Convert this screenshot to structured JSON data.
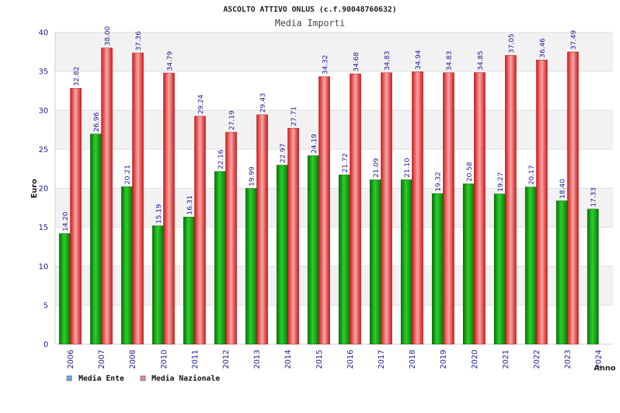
{
  "chart_data": {
    "type": "bar",
    "title": "ASCOLTO ATTIVO ONLUS (c.f.90048760632)",
    "subtitle": "Media Importi",
    "xlabel": "Anno",
    "ylabel": "Euro",
    "ylim": [
      0,
      40
    ],
    "yticks": [
      0,
      5,
      10,
      15,
      20,
      25,
      30,
      35,
      40
    ],
    "grid": true,
    "legend_position": "bottom-left",
    "categories": [
      "2006",
      "2007",
      "2008",
      "2010",
      "2011",
      "2012",
      "2013",
      "2014",
      "2015",
      "2016",
      "2017",
      "2018",
      "2019",
      "2020",
      "2021",
      "2022",
      "2023",
      "2024"
    ],
    "series": [
      {
        "name": "Media Ente",
        "color": "#1f9e1f",
        "legend_color": "#6aa9e8",
        "labels": [
          "14.20",
          "26.96",
          "20.21",
          "15.19",
          "16.31",
          "22.16",
          "19.99",
          "22.97",
          "24.19",
          "21.72",
          "21.09",
          "21.10",
          "19.32",
          "20.58",
          "19.27",
          "20.17",
          "18.40",
          "17.33"
        ],
        "values": [
          14.2,
          26.96,
          20.21,
          15.19,
          16.31,
          22.16,
          19.99,
          22.97,
          24.19,
          21.72,
          21.09,
          21.1,
          19.32,
          20.58,
          19.27,
          20.17,
          18.4,
          17.33
        ]
      },
      {
        "name": "Media Nazionale",
        "color": "#e23a3a",
        "legend_color": "#d68ab4",
        "labels": [
          "32.82",
          "38.00",
          "37.36",
          "34.79",
          "29.24",
          "27.19",
          "29.43",
          "27.71",
          "34.32",
          "34.68",
          "34.83",
          "34.94",
          "34.83",
          "34.85",
          "37.05",
          "36.46",
          "37.49",
          ""
        ],
        "values": [
          32.82,
          38.0,
          37.36,
          34.79,
          29.24,
          27.19,
          29.43,
          27.71,
          34.32,
          34.68,
          34.83,
          34.94,
          34.83,
          34.85,
          37.05,
          36.46,
          37.49,
          null
        ]
      }
    ]
  }
}
